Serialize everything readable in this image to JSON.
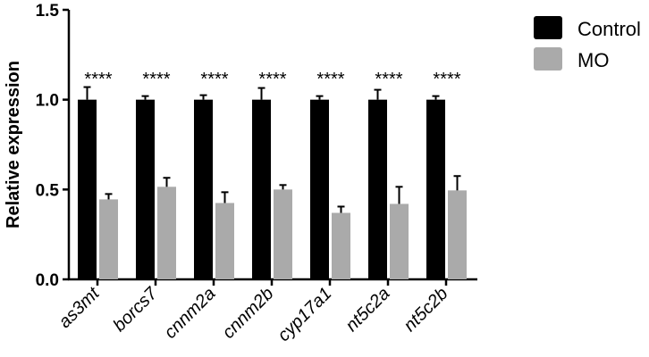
{
  "chart_data": {
    "type": "bar",
    "ylabel": "Relative expression",
    "xlabel": "",
    "ylim": [
      0,
      1.5
    ],
    "yticks": [
      "0.0",
      "0.5",
      "1.0",
      "1.5"
    ],
    "categories": [
      "as3mt",
      "borcs7",
      "cnnm2a",
      "cnnm2b",
      "cyp17a1",
      "nt5c2a",
      "nt5c2b"
    ],
    "series": [
      {
        "name": "Control",
        "color": "#000000",
        "values": [
          1.0,
          1.0,
          1.0,
          1.0,
          1.0,
          1.0,
          1.0
        ],
        "errors": [
          0.07,
          0.02,
          0.025,
          0.065,
          0.02,
          0.055,
          0.02
        ]
      },
      {
        "name": "MO",
        "color": "#aaaaaa",
        "values": [
          0.445,
          0.515,
          0.425,
          0.5,
          0.37,
          0.42,
          0.495
        ],
        "errors": [
          0.03,
          0.05,
          0.06,
          0.025,
          0.035,
          0.095,
          0.08
        ]
      }
    ],
    "annotations": [
      "****",
      "****",
      "****",
      "****",
      "****",
      "****",
      "****"
    ],
    "legend_position": "top-right",
    "grid": false
  }
}
